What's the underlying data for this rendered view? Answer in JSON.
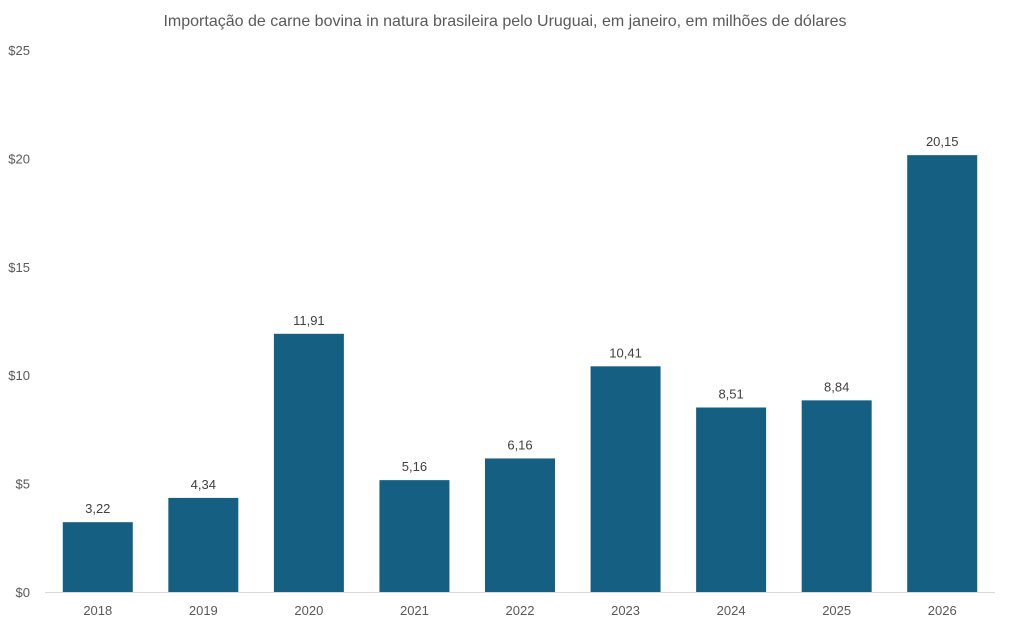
{
  "chart_data": {
    "type": "bar",
    "title": "Importação de carne bovina in natura brasileira pelo Uruguai, em janeiro, em milhões de dólares",
    "categories": [
      "2018",
      "2019",
      "2020",
      "2021",
      "2022",
      "2023",
      "2024",
      "2025",
      "2026"
    ],
    "values": [
      3.22,
      4.34,
      11.91,
      5.16,
      6.16,
      10.41,
      8.51,
      8.84,
      20.15
    ],
    "data_labels": [
      "3,22",
      "4,34",
      "11,91",
      "5,16",
      "6,16",
      "10,41",
      "8,51",
      "8,84",
      "20,15"
    ],
    "y_ticks": [
      0,
      5,
      10,
      15,
      20,
      25
    ],
    "y_tick_labels": [
      "$0",
      "$5",
      "$10",
      "$15",
      "$20",
      "$25"
    ],
    "xlabel": "",
    "ylabel": "",
    "ylim": [
      0,
      25
    ],
    "grid": false,
    "legend": "none",
    "bar_color": "#156082"
  }
}
